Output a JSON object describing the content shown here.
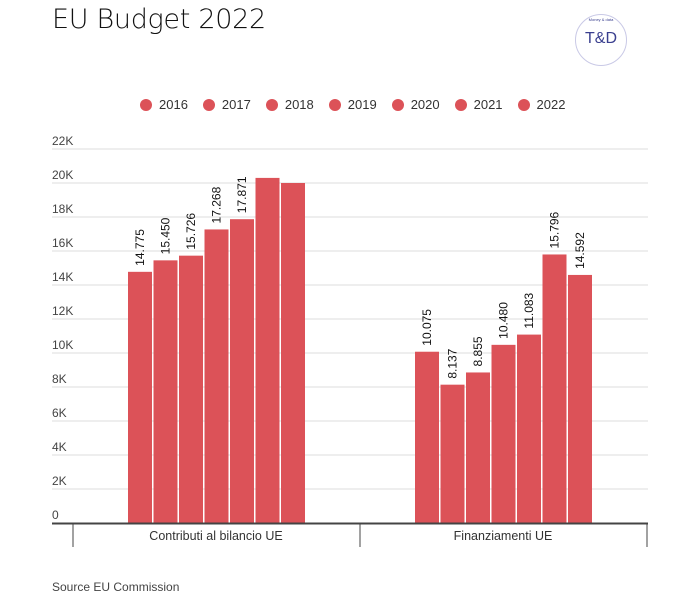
{
  "title": "EU Budget 2022",
  "logo": {
    "text": "T&D",
    "subtext": "Money & data"
  },
  "source": "Source EU Commission",
  "colors": {
    "bar": "#dc5258",
    "grid": "#dddddd",
    "axis": "#444444",
    "text": "#333333"
  },
  "chart_data": {
    "type": "bar",
    "title": "EU Budget 2022",
    "xlabel": "",
    "ylabel": "",
    "ylim": [
      0,
      22000
    ],
    "grid": true,
    "legend_position": "top",
    "yticks": [
      0,
      2000,
      4000,
      6000,
      8000,
      10000,
      12000,
      14000,
      16000,
      18000,
      20000,
      22000
    ],
    "ytick_labels": [
      "0",
      "2K",
      "4K",
      "6K",
      "8K",
      "10K",
      "12K",
      "14K",
      "16K",
      "18K",
      "20K",
      "22K"
    ],
    "categories": [
      "Contributi al bilancio UE",
      "Finanziamenti UE"
    ],
    "series": [
      {
        "name": "2016",
        "values": [
          14775,
          10075
        ],
        "labels": [
          "14.775",
          "10.075"
        ]
      },
      {
        "name": "2017",
        "values": [
          15450,
          8137
        ],
        "labels": [
          "15.450",
          "8.137"
        ]
      },
      {
        "name": "2018",
        "values": [
          15726,
          8855
        ],
        "labels": [
          "15.726",
          "8.855"
        ]
      },
      {
        "name": "2019",
        "values": [
          17268,
          10480
        ],
        "labels": [
          "17.268",
          "10.480"
        ]
      },
      {
        "name": "2020",
        "values": [
          17871,
          11083
        ],
        "labels": [
          "17.871",
          "11.083"
        ]
      },
      {
        "name": "2021",
        "values": [
          20300,
          15796
        ],
        "labels": [
          "",
          "15.796"
        ]
      },
      {
        "name": "2022",
        "values": [
          20000,
          14592
        ],
        "labels": [
          "",
          "14.592"
        ]
      }
    ]
  }
}
